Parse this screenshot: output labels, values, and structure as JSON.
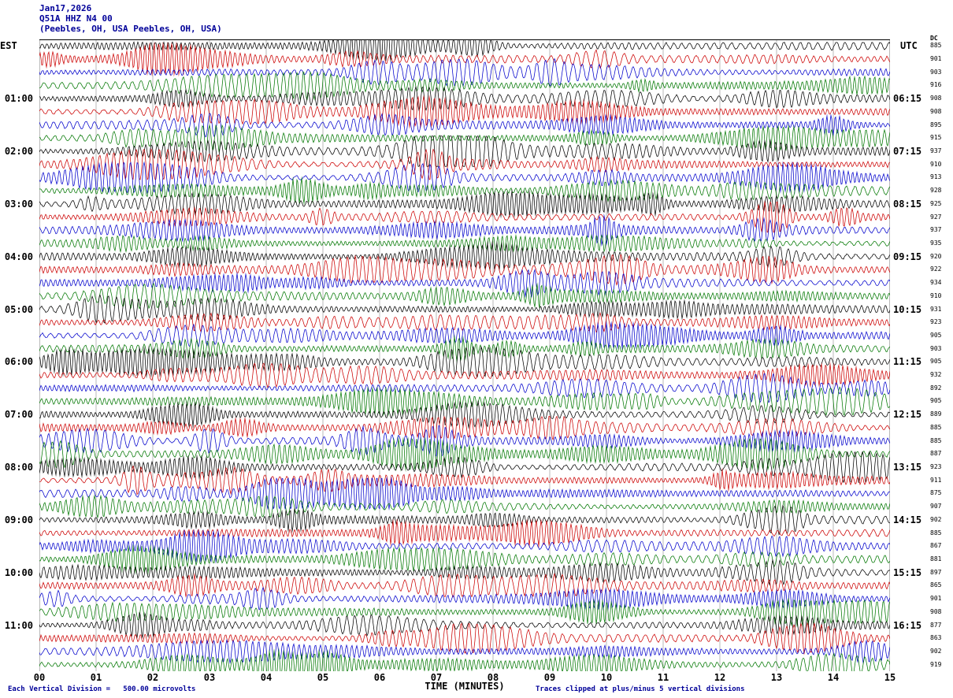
{
  "header": {
    "date": "Jan17,2026",
    "station": "Q51A HHZ N4 00",
    "location": "(Peebles, OH, USA Peebles, OH, USA)",
    "left_tz": "EST",
    "right_tz": "UTC",
    "dc_header": "DC"
  },
  "footer": {
    "scale_note": "Each Vertical Division =   500.00 microvolts",
    "clip_note": "Traces clipped at plus/minus 5 vertical divisions"
  },
  "chart_data": {
    "type": "line",
    "title": "Q51A HHZ N4 00 helicorder seismogram",
    "xlabel": "TIME (MINUTES)",
    "x_ticks": [
      "00",
      "01",
      "02",
      "03",
      "04",
      "05",
      "06",
      "07",
      "08",
      "09",
      "10",
      "11",
      "12",
      "13",
      "14",
      "15"
    ],
    "x_range_minutes": [
      0,
      15
    ],
    "minutes_per_line": 15,
    "microvolts_per_division": 500.0,
    "clip_divisions": 5,
    "trace_color_cycle": [
      "#000000",
      "#cc0000",
      "#0000cc",
      "#007700"
    ],
    "rows": [
      {
        "dc": 885
      },
      {
        "dc": 901
      },
      {
        "dc": 903
      },
      {
        "dc": 916
      },
      {
        "dc": 908,
        "est": "01:00",
        "utc": "06:15"
      },
      {
        "dc": 908
      },
      {
        "dc": 895
      },
      {
        "dc": 915
      },
      {
        "dc": 937,
        "est": "02:00",
        "utc": "07:15"
      },
      {
        "dc": 910
      },
      {
        "dc": 913
      },
      {
        "dc": 928
      },
      {
        "dc": 925,
        "est": "03:00",
        "utc": "08:15"
      },
      {
        "dc": 927
      },
      {
        "dc": 937
      },
      {
        "dc": 935
      },
      {
        "dc": 920,
        "est": "04:00",
        "utc": "09:15"
      },
      {
        "dc": 922
      },
      {
        "dc": 934
      },
      {
        "dc": 910
      },
      {
        "dc": 931,
        "est": "05:00",
        "utc": "10:15"
      },
      {
        "dc": 923
      },
      {
        "dc": 905
      },
      {
        "dc": 903
      },
      {
        "dc": 905,
        "est": "06:00",
        "utc": "11:15"
      },
      {
        "dc": 932
      },
      {
        "dc": 892
      },
      {
        "dc": 905
      },
      {
        "dc": 889,
        "est": "07:00",
        "utc": "12:15"
      },
      {
        "dc": 885
      },
      {
        "dc": 885
      },
      {
        "dc": 887
      },
      {
        "dc": 923,
        "est": "08:00",
        "utc": "13:15"
      },
      {
        "dc": 911
      },
      {
        "dc": 875
      },
      {
        "dc": 907
      },
      {
        "dc": 902,
        "est": "09:00",
        "utc": "14:15"
      },
      {
        "dc": 885
      },
      {
        "dc": 867
      },
      {
        "dc": 881
      },
      {
        "dc": 897,
        "est": "10:00",
        "utc": "15:15"
      },
      {
        "dc": 865
      },
      {
        "dc": 901
      },
      {
        "dc": 908
      },
      {
        "dc": 877,
        "est": "11:00",
        "utc": "16:15"
      },
      {
        "dc": 863
      },
      {
        "dc": 902
      },
      {
        "dc": 919
      }
    ]
  }
}
